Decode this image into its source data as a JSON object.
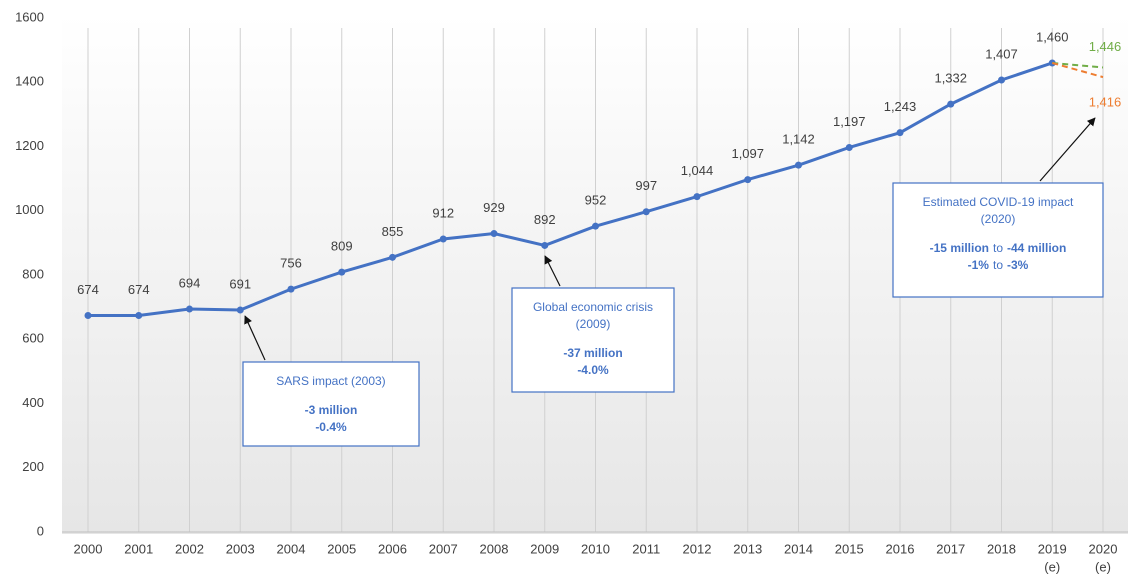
{
  "chart_data": {
    "type": "line",
    "categories": [
      "2000",
      "2001",
      "2002",
      "2003",
      "2004",
      "2005",
      "2006",
      "2007",
      "2008",
      "2009",
      "2010",
      "2011",
      "2012",
      "2013",
      "2014",
      "2015",
      "2016",
      "2017",
      "2018",
      "2019",
      "2020"
    ],
    "category_notes": [
      null,
      null,
      null,
      null,
      null,
      null,
      null,
      null,
      null,
      null,
      null,
      null,
      null,
      null,
      null,
      null,
      null,
      null,
      null,
      "(e)",
      "(e)"
    ],
    "series": [
      {
        "color": "#4472c4",
        "style": "solid",
        "values": [
          674,
          674,
          694,
          691,
          756,
          809,
          855,
          912,
          929,
          892,
          952,
          997,
          1044,
          1097,
          1142,
          1197,
          1243,
          1332,
          1407,
          1460,
          null
        ],
        "value_labels": [
          "674",
          "674",
          "694",
          "691",
          "756",
          "809",
          "855",
          "912",
          "929",
          "892",
          "952",
          "997",
          "1,044",
          "1,097",
          "1,142",
          "1,197",
          "1,243",
          "1,332",
          "1,407",
          "1,460",
          null
        ]
      },
      {
        "color": "#70ad47",
        "style": "dashed",
        "values": [
          null,
          null,
          null,
          null,
          null,
          null,
          null,
          null,
          null,
          null,
          null,
          null,
          null,
          null,
          null,
          null,
          null,
          null,
          null,
          1460,
          1446
        ],
        "value_labels": [
          null,
          null,
          null,
          null,
          null,
          null,
          null,
          null,
          null,
          null,
          null,
          null,
          null,
          null,
          null,
          null,
          null,
          null,
          null,
          null,
          "1,446"
        ]
      },
      {
        "color": "#ed7d31",
        "style": "dashed",
        "values": [
          null,
          null,
          null,
          null,
          null,
          null,
          null,
          null,
          null,
          null,
          null,
          null,
          null,
          null,
          null,
          null,
          null,
          null,
          null,
          1460,
          1416
        ],
        "value_labels": [
          null,
          null,
          null,
          null,
          null,
          null,
          null,
          null,
          null,
          null,
          null,
          null,
          null,
          null,
          null,
          null,
          null,
          null,
          null,
          null,
          "1,416"
        ]
      }
    ],
    "ylim": [
      0,
      1600
    ],
    "yticks": [
      0,
      200,
      400,
      600,
      800,
      1000,
      1200,
      1400,
      1600
    ],
    "grid": "vertical",
    "annotations": [
      {
        "title_lines": [
          "SARS impact (2003)"
        ],
        "detail_lines": [
          [
            "-3 million"
          ],
          [
            "-0.4%"
          ]
        ]
      },
      {
        "title_lines": [
          "Global economic crisis",
          "(2009)"
        ],
        "detail_lines": [
          [
            "-37 million"
          ],
          [
            "-4.0%"
          ]
        ]
      },
      {
        "title_lines": [
          "Estimated COVID-19 impact",
          "(2020)"
        ],
        "detail_lines": [
          [
            "-15 million",
            "to",
            "-44 million"
          ],
          [
            "-1%",
            "to",
            "-3%"
          ]
        ]
      }
    ]
  }
}
